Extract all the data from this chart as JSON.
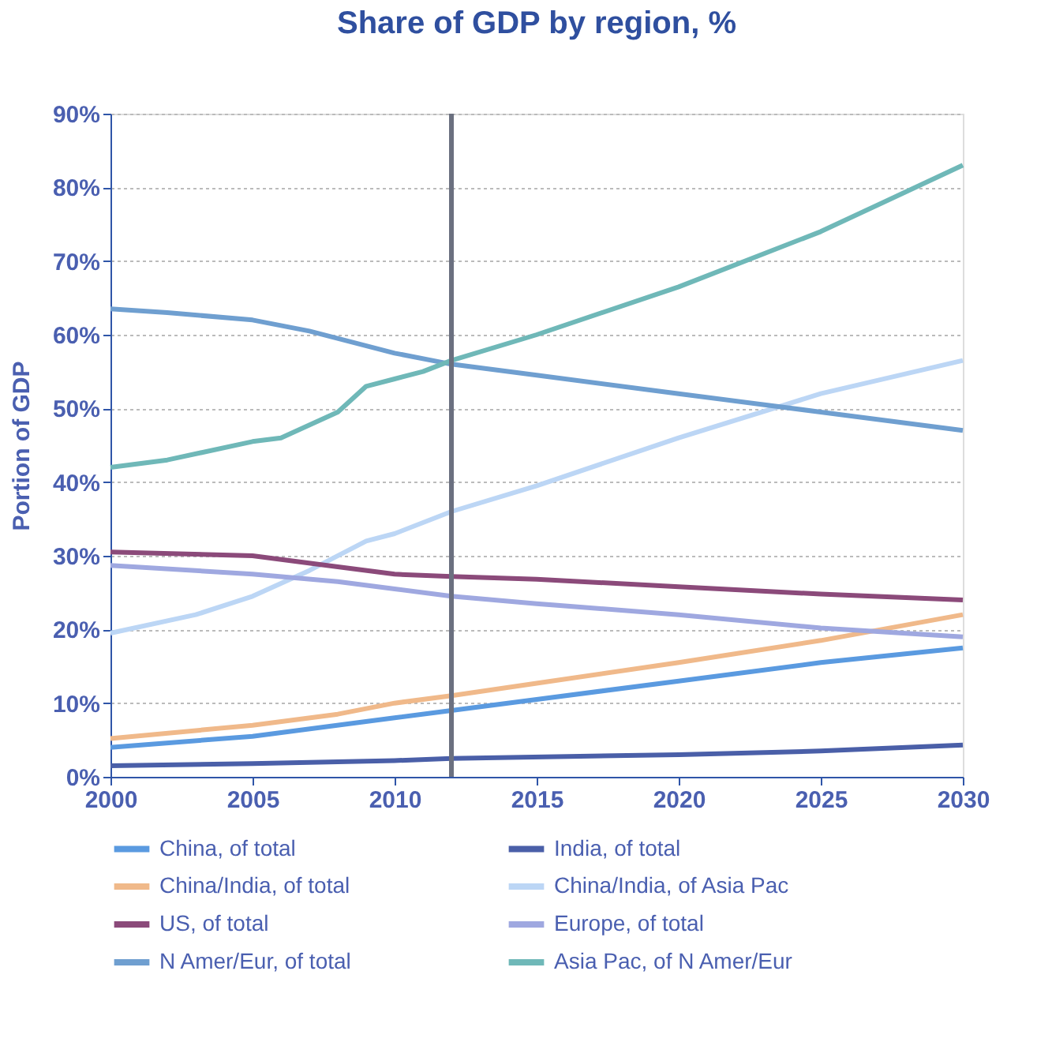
{
  "chart_data": {
    "type": "line",
    "title": "Share of GDP by region, %",
    "ylabel": "Portion of GDP",
    "xlim": [
      2000,
      2030
    ],
    "xticks": [
      2000,
      2005,
      2010,
      2015,
      2020,
      2025,
      2030
    ],
    "ylim": [
      0,
      90
    ],
    "yticks": [
      {
        "value": 0,
        "label": "0%"
      },
      {
        "value": 10,
        "label": "10%"
      },
      {
        "value": 20,
        "label": "20%"
      },
      {
        "value": 30,
        "label": "30%"
      },
      {
        "value": 40,
        "label": "40%"
      },
      {
        "value": 50,
        "label": "50%"
      },
      {
        "value": 60,
        "label": "60%"
      },
      {
        "value": 70,
        "label": "70%"
      },
      {
        "value": 80,
        "label": "80%"
      },
      {
        "value": 90,
        "label": "90%"
      }
    ],
    "grid": "y",
    "legend": "bottom",
    "marker": "none",
    "line_style": "solid",
    "ref_lines": [
      {
        "axis": "x",
        "value": 2012,
        "color": "#6b7080"
      }
    ],
    "series": [
      {
        "name": "China, of total",
        "color": "#5a9ae0",
        "x": [
          2000,
          2005,
          2010,
          2012,
          2015,
          2020,
          2025,
          2030
        ],
        "values": [
          4,
          5.5,
          8,
          9,
          10.5,
          13,
          15.5,
          17.5
        ]
      },
      {
        "name": "India, of total",
        "color": "#4a5fa8",
        "x": [
          2000,
          2005,
          2010,
          2012,
          2020,
          2025,
          2030
        ],
        "values": [
          1.5,
          1.8,
          2.2,
          2.5,
          3,
          3.5,
          4.3
        ]
      },
      {
        "name": "China/India, of total",
        "color": "#f0b98a",
        "x": [
          2000,
          2005,
          2008,
          2010,
          2012,
          2015,
          2020,
          2025,
          2030
        ],
        "values": [
          5.2,
          7,
          8.5,
          10,
          11,
          12.7,
          15.5,
          18.5,
          22
        ]
      },
      {
        "name": "China/India, of Asia Pac",
        "color": "#bcd6f5",
        "x": [
          2000,
          2003,
          2005,
          2007,
          2009,
          2010,
          2012,
          2015,
          2020,
          2025,
          2030
        ],
        "values": [
          19.5,
          22,
          24.5,
          28,
          32,
          33,
          36,
          39.5,
          46,
          52,
          56.5
        ]
      },
      {
        "name": "US, of total",
        "color": "#8b4a7a",
        "x": [
          2000,
          2005,
          2008,
          2010,
          2012,
          2015,
          2020,
          2025,
          2030
        ],
        "values": [
          30.5,
          30,
          28.5,
          27.5,
          27.2,
          26.8,
          25.8,
          24.8,
          24
        ]
      },
      {
        "name": "Europe, of total",
        "color": "#9fa8e0",
        "x": [
          2000,
          2005,
          2008,
          2010,
          2012,
          2015,
          2020,
          2025,
          2030
        ],
        "values": [
          28.7,
          27.5,
          26.5,
          25.5,
          24.5,
          23.5,
          22,
          20.2,
          19
        ]
      },
      {
        "name": "N Amer/Eur, of total",
        "color": "#6f9fd0",
        "x": [
          2000,
          2002,
          2005,
          2007,
          2010,
          2012,
          2015,
          2020,
          2025,
          2030
        ],
        "values": [
          63.5,
          63,
          62,
          60.5,
          57.5,
          56,
          54.5,
          52,
          49.5,
          47
        ]
      },
      {
        "name": "Asia Pac, of N Amer/Eur",
        "color": "#6fb8b8",
        "x": [
          2000,
          2002,
          2005,
          2006,
          2008,
          2009,
          2010,
          2011,
          2012,
          2015,
          2020,
          2025,
          2030
        ],
        "values": [
          42,
          43,
          45.5,
          46,
          49.5,
          53,
          54,
          55,
          56.5,
          60,
          66.5,
          74,
          83
        ]
      }
    ]
  }
}
